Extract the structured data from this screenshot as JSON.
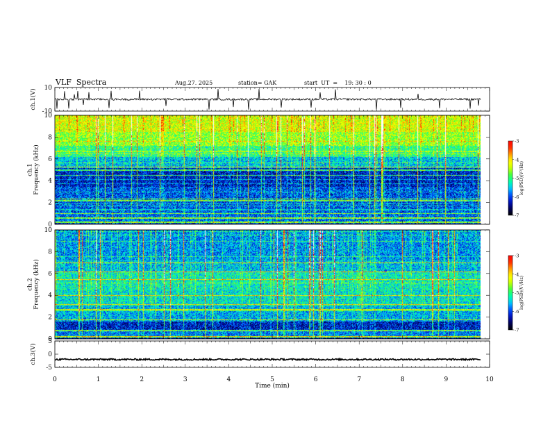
{
  "header": {
    "title": "VLF  Spectra",
    "date": "Aug.27. 2025",
    "station": "station= GAK",
    "start_ut": "start  UT  =    19: 30 : 0"
  },
  "colors": {
    "colormap": [
      "#000000",
      "#000055",
      "#0010c0",
      "#0050ff",
      "#00c8ff",
      "#00ffaa",
      "#40ff40",
      "#c8ff00",
      "#ffff00",
      "#ffa000",
      "#ff3000",
      "#ff0000",
      "#ffffff"
    ]
  },
  "chart_data": [
    {
      "type": "line",
      "name": "ch.1 waveform",
      "ylabel": "ch.1(V)",
      "ylim": [
        -10,
        10
      ],
      "yticks": [
        10,
        -10
      ],
      "baseline": 0,
      "spikes": [
        0.05,
        0.22,
        0.32,
        0.45,
        0.52,
        0.66,
        0.78,
        1.25,
        1.3,
        1.95,
        2.55,
        3.55,
        3.75,
        4.1,
        4.45,
        4.7,
        5.2,
        5.9,
        6.1,
        6.45,
        7.4,
        7.95,
        8.35,
        8.85,
        9.55,
        9.75
      ]
    },
    {
      "type": "heatmap",
      "name": "ch.1 spectrogram",
      "ylabel": "ch.1\nFrequency  (kHz)",
      "xlim": [
        0,
        9.8
      ],
      "ylim": [
        0,
        10
      ],
      "yticks": [
        0,
        2,
        4,
        6,
        8,
        10
      ],
      "colorbar": {
        "label": "log(PSD)(V²/Hz)",
        "range": [
          -7,
          -3
        ],
        "ticks": [
          -3,
          -4,
          -5,
          -6,
          -7
        ]
      }
    },
    {
      "type": "heatmap",
      "name": "ch.2 spectrogram",
      "ylabel": "ch.2\nFrequency  (kHz)",
      "xlim": [
        0,
        9.8
      ],
      "ylim": [
        0,
        10
      ],
      "yticks": [
        0,
        2,
        4,
        6,
        8,
        10
      ],
      "colorbar": {
        "label": "log(PSD)(V²/Hz)",
        "range": [
          -7,
          -3
        ],
        "ticks": [
          -3,
          -4,
          -5,
          -6,
          -7
        ]
      }
    },
    {
      "type": "line",
      "name": "ch.3 waveform",
      "ylabel": "ch.3(V)",
      "ylim": [
        -5,
        5
      ],
      "yticks": [
        5,
        0,
        -5
      ],
      "baseline": -2,
      "xlabel": "Time  (min)",
      "xlim": [
        0,
        10
      ],
      "xticks": [
        0,
        1,
        2,
        3,
        4,
        5,
        6,
        7,
        8,
        9,
        10
      ]
    }
  ]
}
